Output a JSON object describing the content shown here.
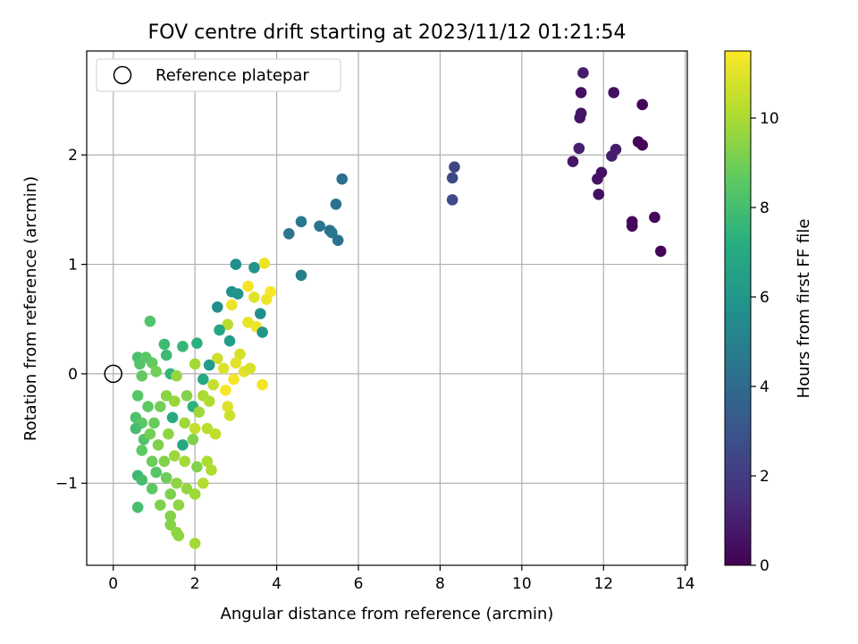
{
  "chart_data": {
    "type": "scatter",
    "title": "FOV centre drift starting at 2023/11/12 01:21:54",
    "xlabel": "Angular distance from reference (arcmin)",
    "ylabel": "Rotation from reference (arcmin)",
    "xlim": [
      -0.65,
      14.05
    ],
    "ylim": [
      -1.75,
      2.95
    ],
    "xticks": [
      0,
      2,
      4,
      6,
      8,
      10,
      12,
      14
    ],
    "xtick_labels": [
      "0",
      "2",
      "4",
      "6",
      "8",
      "10",
      "12",
      "14"
    ],
    "yticks": [
      -1,
      0,
      1,
      2
    ],
    "ytick_labels": [
      "−1",
      "0",
      "1",
      "2"
    ],
    "grid": true,
    "legend": {
      "position": "top-left",
      "entries": [
        "Reference platepar"
      ]
    },
    "reference_point": {
      "x": 0,
      "y": 0
    },
    "colorbar": {
      "label": "Hours from first FF file",
      "colormap": "viridis",
      "min": 0,
      "max": 11.5,
      "ticks": [
        0,
        2,
        4,
        6,
        8,
        10
      ],
      "tick_labels": [
        "0",
        "2",
        "4",
        "6",
        "8",
        "10"
      ]
    },
    "points": [
      [
        11.5,
        2.75,
        0.9
      ],
      [
        11.45,
        2.57,
        0.5
      ],
      [
        12.25,
        2.57,
        0.4
      ],
      [
        11.45,
        2.38,
        0.6
      ],
      [
        11.42,
        2.34,
        0.7
      ],
      [
        12.95,
        2.46,
        0.1
      ],
      [
        11.4,
        2.06,
        1.0
      ],
      [
        12.3,
        2.05,
        0.9
      ],
      [
        12.85,
        2.12,
        0.2
      ],
      [
        12.95,
        2.09,
        0.1
      ],
      [
        11.25,
        1.94,
        0.7
      ],
      [
        12.2,
        1.99,
        0.9
      ],
      [
        11.95,
        1.84,
        0.5
      ],
      [
        11.85,
        1.78,
        0.6
      ],
      [
        11.88,
        1.64,
        0.5
      ],
      [
        12.7,
        1.39,
        0.2
      ],
      [
        12.7,
        1.35,
        0.2
      ],
      [
        13.25,
        1.43,
        0.2
      ],
      [
        13.4,
        1.12,
        0.1
      ],
      [
        8.35,
        1.89,
        2.4
      ],
      [
        8.3,
        1.79,
        2.5
      ],
      [
        8.3,
        1.59,
        2.6
      ],
      [
        5.6,
        1.78,
        4.2
      ],
      [
        5.45,
        1.55,
        4.3
      ],
      [
        4.6,
        1.39,
        4.6
      ],
      [
        4.3,
        1.28,
        4.5
      ],
      [
        5.05,
        1.35,
        4.4
      ],
      [
        5.3,
        1.31,
        4.3
      ],
      [
        5.35,
        1.29,
        4.5
      ],
      [
        5.5,
        1.22,
        4.3
      ],
      [
        4.6,
        0.9,
        4.8
      ],
      [
        3.0,
        1.0,
        5.7
      ],
      [
        3.45,
        0.97,
        5.9
      ],
      [
        3.7,
        1.01,
        11.2
      ],
      [
        3.3,
        0.8,
        11.3
      ],
      [
        3.85,
        0.75,
        11.4
      ],
      [
        2.55,
        0.61,
        5.6
      ],
      [
        2.9,
        0.75,
        5.8
      ],
      [
        3.05,
        0.73,
        5.9
      ],
      [
        3.45,
        0.7,
        11.0
      ],
      [
        3.75,
        0.68,
        11.2
      ],
      [
        3.6,
        0.55,
        5.7
      ],
      [
        3.3,
        0.47,
        11.1
      ],
      [
        3.5,
        0.43,
        11.2
      ],
      [
        2.8,
        0.45,
        10.3
      ],
      [
        2.9,
        0.63,
        11.2
      ],
      [
        0.9,
        0.48,
        8.3
      ],
      [
        1.25,
        0.27,
        7.8
      ],
      [
        1.7,
        0.25,
        7.6
      ],
      [
        2.05,
        0.28,
        7.3
      ],
      [
        2.6,
        0.4,
        6.8
      ],
      [
        3.65,
        0.38,
        6.0
      ],
      [
        2.85,
        0.3,
        6.4
      ],
      [
        3.1,
        0.18,
        10.8
      ],
      [
        3.0,
        0.1,
        11.0
      ],
      [
        2.55,
        0.14,
        10.6
      ],
      [
        2.0,
        0.09,
        9.9
      ],
      [
        1.3,
        0.17,
        7.8
      ],
      [
        0.95,
        0.1,
        8.7
      ],
      [
        0.6,
        0.15,
        8.1
      ],
      [
        0.65,
        0.09,
        8.3
      ],
      [
        0.8,
        0.15,
        8.5
      ],
      [
        0.7,
        -0.02,
        8.7
      ],
      [
        1.05,
        0.02,
        9.0
      ],
      [
        1.4,
        0.0,
        7.5
      ],
      [
        1.55,
        -0.02,
        9.6
      ],
      [
        2.35,
        0.08,
        6.3
      ],
      [
        2.7,
        0.05,
        10.9
      ],
      [
        3.2,
        0.02,
        11.0
      ],
      [
        3.35,
        0.05,
        10.8
      ],
      [
        3.65,
        -0.1,
        11.3
      ],
      [
        2.2,
        -0.05,
        7.0
      ],
      [
        2.95,
        -0.05,
        11.3
      ],
      [
        2.45,
        -0.1,
        10.5
      ],
      [
        2.75,
        -0.15,
        11.4
      ],
      [
        2.2,
        -0.2,
        10.0
      ],
      [
        1.8,
        -0.2,
        9.3
      ],
      [
        1.5,
        -0.25,
        9.7
      ],
      [
        0.6,
        -0.2,
        8.4
      ],
      [
        0.85,
        -0.3,
        8.6
      ],
      [
        1.15,
        -0.3,
        9.0
      ],
      [
        1.3,
        -0.2,
        9.4
      ],
      [
        1.95,
        -0.3,
        7.3
      ],
      [
        2.1,
        -0.35,
        9.8
      ],
      [
        2.35,
        -0.25,
        10.1
      ],
      [
        2.8,
        -0.3,
        10.9
      ],
      [
        2.85,
        -0.38,
        10.6
      ],
      [
        0.55,
        -0.4,
        8.2
      ],
      [
        0.7,
        -0.45,
        8.5
      ],
      [
        1.0,
        -0.45,
        8.8
      ],
      [
        1.45,
        -0.4,
        7.0
      ],
      [
        1.75,
        -0.45,
        9.8
      ],
      [
        2.0,
        -0.5,
        10.5
      ],
      [
        2.3,
        -0.5,
        10.3
      ],
      [
        2.5,
        -0.55,
        10.4
      ],
      [
        0.55,
        -0.5,
        8.0
      ],
      [
        0.75,
        -0.6,
        8.3
      ],
      [
        0.9,
        -0.55,
        9.0
      ],
      [
        1.1,
        -0.65,
        9.2
      ],
      [
        1.35,
        -0.55,
        9.5
      ],
      [
        1.7,
        -0.65,
        6.9
      ],
      [
        1.95,
        -0.6,
        9.2
      ],
      [
        0.7,
        -0.7,
        8.6
      ],
      [
        0.95,
        -0.8,
        8.9
      ],
      [
        1.25,
        -0.8,
        9.3
      ],
      [
        1.5,
        -0.75,
        9.7
      ],
      [
        1.75,
        -0.8,
        9.9
      ],
      [
        2.3,
        -0.8,
        10.0
      ],
      [
        2.05,
        -0.85,
        9.3
      ],
      [
        2.4,
        -0.88,
        10.1
      ],
      [
        0.6,
        -0.93,
        7.7
      ],
      [
        0.7,
        -0.97,
        8.0
      ],
      [
        1.05,
        -0.9,
        8.4
      ],
      [
        1.3,
        -0.95,
        8.9
      ],
      [
        1.55,
        -1.0,
        9.5
      ],
      [
        1.8,
        -1.05,
        9.6
      ],
      [
        2.0,
        -1.1,
        9.8
      ],
      [
        2.2,
        -1.0,
        10.2
      ],
      [
        0.95,
        -1.05,
        8.6
      ],
      [
        1.4,
        -1.1,
        9.2
      ],
      [
        1.15,
        -1.2,
        9.2
      ],
      [
        1.6,
        -1.2,
        9.5
      ],
      [
        0.6,
        -1.22,
        8.0
      ],
      [
        1.4,
        -1.3,
        9.3
      ],
      [
        1.4,
        -1.38,
        9.3
      ],
      [
        1.55,
        -1.45,
        9.5
      ],
      [
        1.6,
        -1.48,
        9.5
      ],
      [
        2.0,
        -1.55,
        9.9
      ]
    ]
  }
}
